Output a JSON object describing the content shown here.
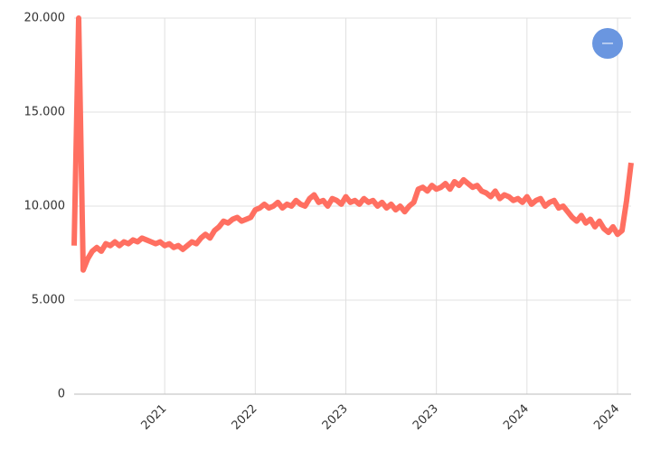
{
  "chart_data": {
    "type": "line",
    "series": [
      {
        "color": "#ff6f61",
        "values": [
          7900,
          20000,
          6600,
          7200,
          7600,
          7800,
          7600,
          8000,
          7900,
          8100,
          7900,
          8100,
          8000,
          8200,
          8100,
          8300,
          8200,
          8100,
          8000,
          8100,
          7900,
          8000,
          7800,
          7900,
          7700,
          7900,
          8100,
          8000,
          8300,
          8500,
          8300,
          8700,
          8900,
          9200,
          9100,
          9300,
          9400,
          9200,
          9300,
          9400,
          9800,
          9900,
          10100,
          9900,
          10000,
          10200,
          9900,
          10100,
          10000,
          10300,
          10100,
          10000,
          10400,
          10600,
          10200,
          10300,
          10000,
          10400,
          10300,
          10100,
          10500,
          10200,
          10300,
          10100,
          10400,
          10200,
          10300,
          10000,
          10200,
          9900,
          10100,
          9800,
          10000,
          9700,
          10000,
          10200,
          10900,
          11000,
          10800,
          11100,
          10900,
          11000,
          11200,
          10900,
          11300,
          11100,
          11400,
          11200,
          11000,
          11100,
          10800,
          10700,
          10500,
          10800,
          10400,
          10600,
          10500,
          10300,
          10400,
          10200,
          10500,
          10100,
          10300,
          10400,
          10000,
          10200,
          10300,
          9900,
          10000,
          9700,
          9400,
          9200,
          9500,
          9100,
          9300,
          8900,
          9200,
          8800,
          8600,
          8900,
          8500,
          8700,
          10300,
          12300
        ]
      }
    ],
    "xlim": [
      0,
      123
    ],
    "xticks": [
      {
        "value": 20,
        "label": "2021"
      },
      {
        "value": 40,
        "label": "2022"
      },
      {
        "value": 60,
        "label": "2023"
      },
      {
        "value": 80,
        "label": "2023"
      },
      {
        "value": 100,
        "label": "2024"
      },
      {
        "value": 120,
        "label": "2024"
      }
    ],
    "ylim": [
      0,
      20000
    ],
    "yticks": [
      0,
      {
        "value": 5000,
        "label": "5.000"
      },
      {
        "value": 10000,
        "label": "10.000"
      },
      {
        "value": 15000,
        "label": "15.000"
      },
      {
        "value": 20000,
        "label": "20.000"
      }
    ],
    "grid": true
  }
}
